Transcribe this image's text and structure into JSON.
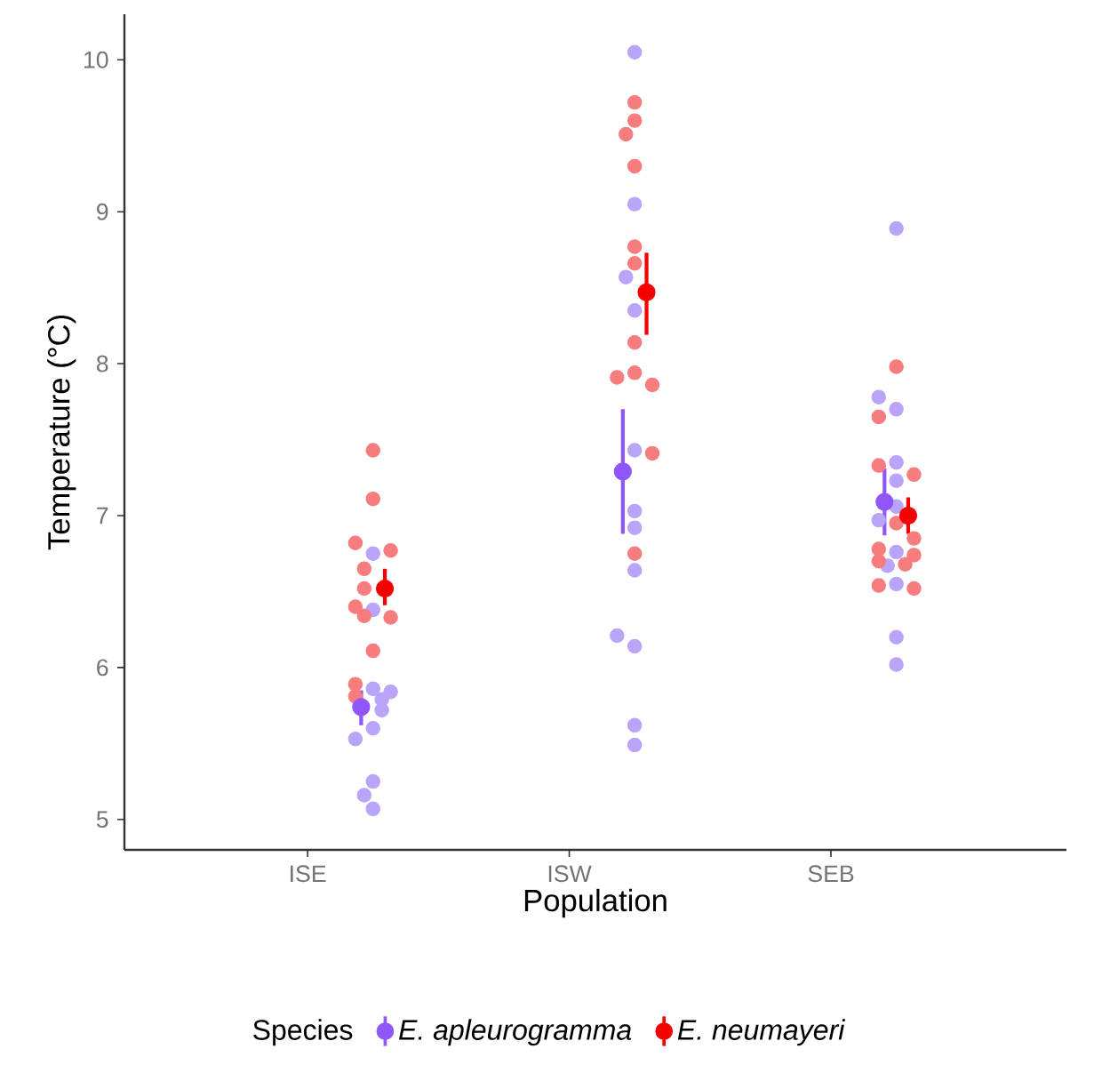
{
  "chart_data": {
    "type": "scatter",
    "xlabel": "Population",
    "ylabel": "Temperature (°C)",
    "legend_title": "Species",
    "legend": "bottom",
    "marker": "circle",
    "grid": false,
    "categories": [
      "ISE",
      "ISW",
      "SEB"
    ],
    "ylim": [
      4.8,
      10.3
    ],
    "yticks": [
      5,
      6,
      7,
      8,
      9,
      10
    ],
    "series": [
      {
        "color": "#b9a4f9",
        "x": [
          "ISE",
          "ISE",
          "ISE",
          "ISE",
          "ISE",
          "ISE",
          "ISE",
          "ISE",
          "ISE",
          "ISE",
          "ISE",
          "ISW",
          "ISW",
          "ISW",
          "ISW",
          "ISW",
          "ISW",
          "ISW",
          "ISW",
          "ISW",
          "ISW",
          "ISW",
          "ISW",
          "SEB",
          "SEB",
          "SEB",
          "SEB",
          "SEB",
          "SEB",
          "SEB",
          "SEB",
          "SEB",
          "SEB",
          "SEB",
          "SEB"
        ],
        "values": [
          6.75,
          6.38,
          5.86,
          5.72,
          5.84,
          5.79,
          5.6,
          5.53,
          5.25,
          5.16,
          5.07,
          10.05,
          9.05,
          8.57,
          8.35,
          7.43,
          7.03,
          6.92,
          6.64,
          6.14,
          6.21,
          5.62,
          5.49,
          7.7,
          7.23,
          6.97,
          6.76,
          6.55,
          6.2,
          6.02,
          7.78,
          8.89,
          7.35,
          7.06,
          6.67
        ]
      },
      {
        "color": "#f77c7e",
        "x": [
          "ISE",
          "ISE",
          "ISE",
          "ISE",
          "ISE",
          "ISE",
          "ISE",
          "ISE",
          "ISE",
          "ISE",
          "ISE",
          "ISE",
          "ISW",
          "ISW",
          "ISW",
          "ISW",
          "ISW",
          "ISW",
          "ISW",
          "ISW",
          "ISW",
          "ISW",
          "ISW",
          "ISW",
          "SEB",
          "SEB",
          "SEB",
          "SEB",
          "SEB",
          "SEB",
          "SEB",
          "SEB",
          "SEB",
          "SEB",
          "SEB",
          "SEB"
        ],
        "values": [
          7.43,
          7.11,
          6.82,
          6.77,
          6.65,
          6.52,
          6.4,
          6.33,
          6.34,
          6.11,
          5.81,
          5.89,
          9.6,
          9.72,
          9.51,
          9.3,
          8.77,
          8.66,
          8.14,
          7.94,
          7.91,
          7.86,
          7.41,
          6.75,
          7.98,
          7.65,
          7.27,
          7.33,
          6.74,
          6.68,
          6.54,
          6.52,
          6.78,
          6.95,
          6.85,
          6.7
        ]
      },
      {
        "name": "E. apleurogramma",
        "color": "#8f57fa",
        "x": [
          "ISE",
          "ISW",
          "SEB"
        ],
        "values": [
          5.74,
          7.29,
          7.09
        ],
        "errors": [
          [
            5.62,
            5.85
          ],
          [
            6.88,
            7.7
          ],
          [
            6.87,
            7.31
          ]
        ]
      },
      {
        "name": "E. neumayeri",
        "color": "#f50000",
        "x": [
          "ISE",
          "ISW",
          "SEB"
        ],
        "values": [
          6.52,
          8.47,
          7.0
        ],
        "errors": [
          [
            6.41,
            6.65
          ],
          [
            8.19,
            8.73
          ],
          [
            6.88,
            7.12
          ]
        ]
      }
    ]
  }
}
